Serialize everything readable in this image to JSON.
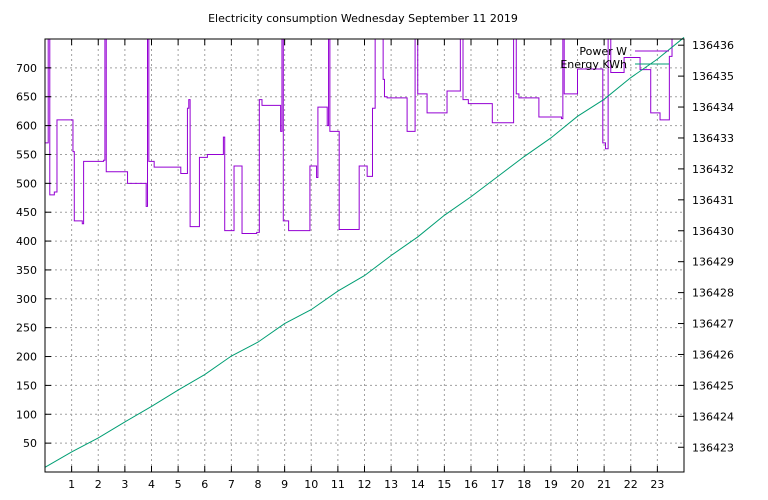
{
  "chart_data": {
    "type": "line",
    "title": "Electricity consumption Wednesday September 11 2019",
    "grid": true,
    "legend_position": "top-right",
    "x_range": [
      0,
      24
    ],
    "x_ticks": [
      1,
      2,
      3,
      4,
      5,
      6,
      7,
      8,
      9,
      10,
      11,
      12,
      13,
      14,
      15,
      16,
      17,
      18,
      19,
      20,
      21,
      22,
      23
    ],
    "y_left_range": [
      0,
      750
    ],
    "y_left_ticks": [
      50,
      100,
      150,
      200,
      250,
      300,
      350,
      400,
      450,
      500,
      550,
      600,
      650,
      700
    ],
    "y_right_range": [
      136422.2,
      136436.2
    ],
    "y_right_ticks": [
      136423,
      136424,
      136425,
      136426,
      136427,
      136428,
      136429,
      136430,
      136431,
      136432,
      136433,
      136434,
      136435,
      136436
    ],
    "series": [
      {
        "name": "Power W",
        "color": "#9400d3",
        "axis": "left",
        "step": true,
        "points": [
          [
            0.0,
            570
          ],
          [
            0.12,
            750
          ],
          [
            0.18,
            480
          ],
          [
            0.35,
            485
          ],
          [
            0.45,
            610
          ],
          [
            1.05,
            555
          ],
          [
            1.1,
            435
          ],
          [
            1.4,
            430
          ],
          [
            1.45,
            538
          ],
          [
            2.2,
            540
          ],
          [
            2.25,
            750
          ],
          [
            2.3,
            520
          ],
          [
            3.1,
            500
          ],
          [
            3.8,
            460
          ],
          [
            3.85,
            750
          ],
          [
            3.9,
            538
          ],
          [
            4.1,
            528
          ],
          [
            5.1,
            517
          ],
          [
            5.35,
            630
          ],
          [
            5.4,
            645
          ],
          [
            5.45,
            425
          ],
          [
            5.8,
            545
          ],
          [
            6.1,
            550
          ],
          [
            6.7,
            580
          ],
          [
            6.75,
            418
          ],
          [
            7.1,
            530
          ],
          [
            7.4,
            413
          ],
          [
            7.95,
            415
          ],
          [
            8.05,
            645
          ],
          [
            8.15,
            635
          ],
          [
            8.85,
            590
          ],
          [
            8.9,
            750
          ],
          [
            8.95,
            435
          ],
          [
            9.15,
            418
          ],
          [
            9.95,
            530
          ],
          [
            10.2,
            510
          ],
          [
            10.25,
            632
          ],
          [
            10.6,
            600
          ],
          [
            10.65,
            750
          ],
          [
            10.7,
            590
          ],
          [
            11.05,
            420
          ],
          [
            11.8,
            530
          ],
          [
            12.1,
            512
          ],
          [
            12.3,
            630
          ],
          [
            12.4,
            750
          ],
          [
            12.7,
            680
          ],
          [
            12.75,
            650
          ],
          [
            12.85,
            648
          ],
          [
            13.6,
            590
          ],
          [
            13.9,
            750
          ],
          [
            14.0,
            655
          ],
          [
            14.35,
            622
          ],
          [
            15.1,
            660
          ],
          [
            15.6,
            750
          ],
          [
            15.7,
            645
          ],
          [
            15.9,
            638
          ],
          [
            16.8,
            605
          ],
          [
            17.6,
            750
          ],
          [
            17.7,
            655
          ],
          [
            17.8,
            648
          ],
          [
            18.55,
            615
          ],
          [
            19.4,
            612
          ],
          [
            19.45,
            750
          ],
          [
            19.5,
            655
          ],
          [
            20.0,
            698
          ],
          [
            20.95,
            570
          ],
          [
            21.05,
            560
          ],
          [
            21.15,
            750
          ],
          [
            21.25,
            692
          ],
          [
            21.75,
            718
          ],
          [
            22.35,
            697
          ],
          [
            22.75,
            622
          ],
          [
            23.1,
            610
          ],
          [
            23.45,
            720
          ],
          [
            23.55,
            750
          ],
          [
            23.65,
            750
          ]
        ]
      },
      {
        "name": "Energy KWh",
        "color": "#009e73",
        "axis": "right",
        "step": false,
        "points": [
          [
            0.0,
            136422.35
          ],
          [
            1.0,
            136422.85
          ],
          [
            2.0,
            136423.3
          ],
          [
            3.0,
            136423.82
          ],
          [
            4.0,
            136424.32
          ],
          [
            5.0,
            136424.85
          ],
          [
            6.0,
            136425.35
          ],
          [
            7.0,
            136425.95
          ],
          [
            8.0,
            136426.4
          ],
          [
            9.0,
            136427.0
          ],
          [
            10.0,
            136427.45
          ],
          [
            11.0,
            136428.05
          ],
          [
            12.0,
            136428.55
          ],
          [
            13.0,
            136429.2
          ],
          [
            14.0,
            136429.8
          ],
          [
            15.0,
            136430.5
          ],
          [
            16.0,
            136431.1
          ],
          [
            17.0,
            136431.75
          ],
          [
            18.0,
            136432.4
          ],
          [
            19.0,
            136433.0
          ],
          [
            20.0,
            136433.7
          ],
          [
            21.0,
            136434.25
          ],
          [
            22.0,
            136434.95
          ],
          [
            23.0,
            136435.55
          ],
          [
            24.0,
            136436.25
          ]
        ]
      }
    ]
  }
}
